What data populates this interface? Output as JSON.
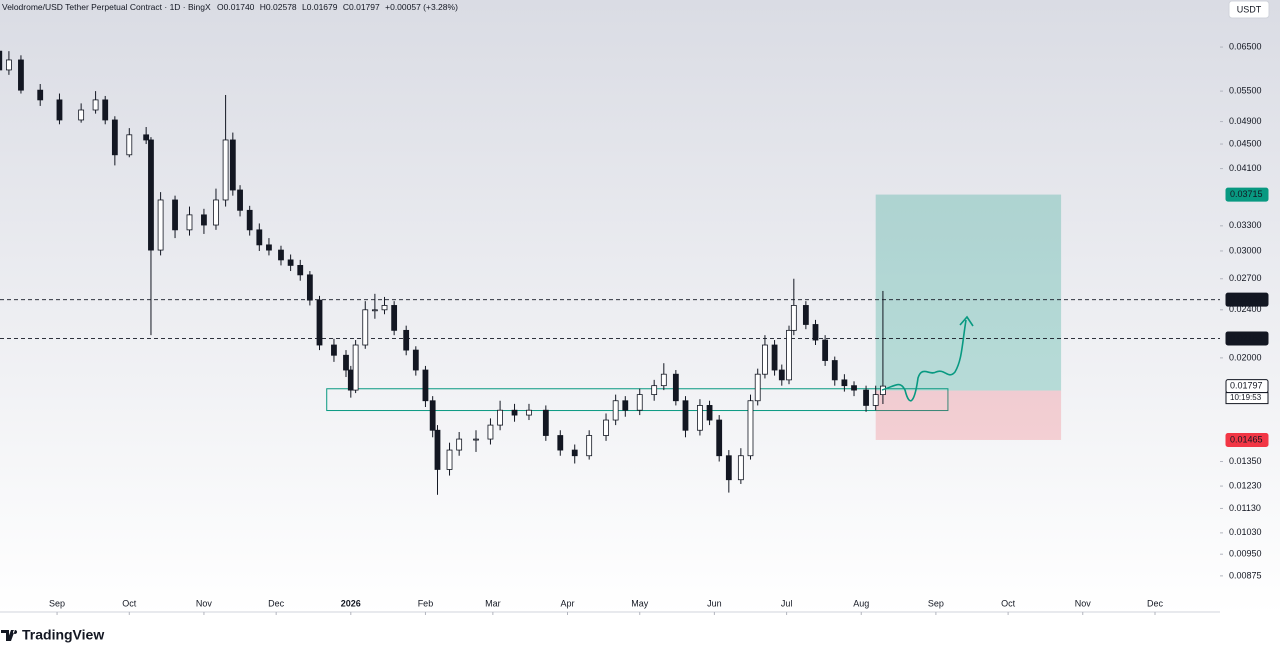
{
  "header": {
    "symbol": "Velodrome/USD Tether Perpetual Contract · 1D · BingX",
    "ohlc": [
      {
        "label": "O",
        "value": "0.01740"
      },
      {
        "label": "H",
        "value": "0.02578"
      },
      {
        "label": "L",
        "value": "0.01679"
      },
      {
        "label": "C",
        "value": "0.01797"
      }
    ],
    "change": "+0.00057 (+3.28%)"
  },
  "toolbar": {
    "currency": "USDT"
  },
  "footer": {
    "brand": "TradingView"
  },
  "chart_data": {
    "type": "candlestick",
    "log_scale": true,
    "ylim": [
      0.00763,
      0.0777
    ],
    "yticks": [
      {
        "value": 0.065,
        "label": "0.06500"
      },
      {
        "value": 0.055,
        "label": "0.05500"
      },
      {
        "value": 0.049,
        "label": "0.04900"
      },
      {
        "value": 0.045,
        "label": "0.04500"
      },
      {
        "value": 0.041,
        "label": "0.04100"
      },
      {
        "value": 0.033,
        "label": "0.03300"
      },
      {
        "value": 0.03,
        "label": "0.03000"
      },
      {
        "value": 0.027,
        "label": "0.02700"
      },
      {
        "value": 0.024,
        "label": "0.02400"
      },
      {
        "value": 0.02,
        "label": "0.02000"
      },
      {
        "value": 0.0135,
        "label": "0.01350"
      },
      {
        "value": 0.0123,
        "label": "0.01230"
      },
      {
        "value": 0.0113,
        "label": "0.01130"
      },
      {
        "value": 0.0103,
        "label": "0.01030"
      },
      {
        "value": 0.0095,
        "label": "0.00950"
      },
      {
        "value": 0.00875,
        "label": "0.00875"
      }
    ],
    "xlim": [
      -23.7,
      483
    ],
    "xticks": [
      {
        "value": 0,
        "label": "Sep"
      },
      {
        "value": 30,
        "label": "Oct"
      },
      {
        "value": 61,
        "label": "Nov"
      },
      {
        "value": 91,
        "label": "Dec"
      },
      {
        "value": 122,
        "label": "2026"
      },
      {
        "value": 153,
        "label": "Feb"
      },
      {
        "value": 181,
        "label": "Mar"
      },
      {
        "value": 212,
        "label": "Apr"
      },
      {
        "value": 242,
        "label": "May"
      },
      {
        "value": 273,
        "label": "Jun"
      },
      {
        "value": 303,
        "label": "Jul"
      },
      {
        "value": 334,
        "label": "Aug"
      },
      {
        "value": 365,
        "label": "Sep"
      },
      {
        "value": 395,
        "label": "Oct"
      },
      {
        "value": 426,
        "label": "Nov"
      },
      {
        "value": 456,
        "label": "Dec"
      }
    ],
    "x": [
      -24,
      -20,
      -15,
      -7,
      1,
      10,
      16,
      20,
      24,
      30,
      37,
      39,
      43,
      49,
      55,
      61,
      66,
      70,
      73,
      76,
      80,
      84,
      88,
      93,
      97,
      101,
      105,
      109,
      115,
      120,
      122,
      124,
      128,
      132,
      136,
      140,
      145,
      149,
      153,
      156,
      158,
      163,
      167,
      174,
      180,
      184,
      190,
      196,
      203,
      209,
      215,
      221,
      228,
      232,
      236,
      242,
      248,
      252,
      257,
      261,
      267,
      271,
      275,
      279,
      284,
      288,
      291,
      294,
      298,
      301,
      304,
      306,
      311,
      315,
      319,
      323,
      327,
      331,
      336,
      340,
      343
    ],
    "open": [
      0.064,
      0.0596,
      0.0619,
      0.0552,
      0.0532,
      0.0493,
      0.0512,
      0.0532,
      0.0493,
      0.0432,
      0.0466,
      0.0457,
      0.0301,
      0.0364,
      0.0325,
      0.0344,
      0.0331,
      0.0364,
      0.0457,
      0.0378,
      0.035,
      0.0325,
      0.0307,
      0.0301,
      0.029,
      0.0284,
      0.0274,
      0.0249,
      0.021,
      0.0202,
      0.0191,
      0.0177,
      0.021,
      0.024,
      0.024,
      0.0244,
      0.0222,
      0.0206,
      0.0191,
      0.017,
      0.0152,
      0.0131,
      0.0141,
      0.0147,
      0.0147,
      0.0155,
      0.0164,
      0.0161,
      0.0164,
      0.0149,
      0.0141,
      0.0138,
      0.0149,
      0.0158,
      0.017,
      0.0164,
      0.0174,
      0.018,
      0.0188,
      0.017,
      0.0152,
      0.0167,
      0.0158,
      0.0138,
      0.0126,
      0.0138,
      0.017,
      0.0188,
      0.021,
      0.0191,
      0.0184,
      0.0222,
      0.0244,
      0.0227,
      0.0214,
      0.0198,
      0.0184,
      0.018,
      0.0177,
      0.0167,
      0.0174
    ],
    "high": [
      0.068,
      0.064,
      0.063,
      0.0565,
      0.0545,
      0.0525,
      0.055,
      0.054,
      0.05,
      0.0478,
      0.048,
      0.0462,
      0.0375,
      0.037,
      0.0355,
      0.0352,
      0.038,
      0.0542,
      0.047,
      0.0385,
      0.0356,
      0.0333,
      0.0315,
      0.0306,
      0.0296,
      0.029,
      0.0278,
      0.0253,
      0.0215,
      0.0206,
      0.0194,
      0.0214,
      0.0248,
      0.0255,
      0.0252,
      0.0248,
      0.0226,
      0.0209,
      0.0194,
      0.0173,
      0.0155,
      0.0145,
      0.0151,
      0.0152,
      0.0159,
      0.017,
      0.0168,
      0.0168,
      0.0167,
      0.0152,
      0.0144,
      0.0152,
      0.0162,
      0.0174,
      0.0173,
      0.0178,
      0.0184,
      0.0196,
      0.0191,
      0.0173,
      0.0171,
      0.017,
      0.0161,
      0.0141,
      0.0142,
      0.0174,
      0.0192,
      0.0218,
      0.0214,
      0.0195,
      0.0226,
      0.027,
      0.0248,
      0.0231,
      0.0218,
      0.0201,
      0.0188,
      0.0183,
      0.018,
      0.018,
      0.02578
    ],
    "low": [
      0.059,
      0.0585,
      0.0545,
      0.052,
      0.0485,
      0.0488,
      0.0505,
      0.0485,
      0.0415,
      0.0428,
      0.045,
      0.0218,
      0.0295,
      0.0315,
      0.0318,
      0.032,
      0.0325,
      0.0355,
      0.037,
      0.0342,
      0.0318,
      0.03,
      0.0295,
      0.0284,
      0.0278,
      0.0268,
      0.0244,
      0.0206,
      0.0197,
      0.0186,
      0.0172,
      0.0175,
      0.0207,
      0.0232,
      0.0236,
      0.0218,
      0.0202,
      0.0187,
      0.0166,
      0.0148,
      0.0119,
      0.0128,
      0.0138,
      0.014,
      0.0144,
      0.0152,
      0.0157,
      0.0158,
      0.0146,
      0.0138,
      0.0134,
      0.0136,
      0.0146,
      0.0155,
      0.016,
      0.0161,
      0.017,
      0.0177,
      0.0167,
      0.0148,
      0.0149,
      0.0155,
      0.0135,
      0.012,
      0.0124,
      0.0136,
      0.0167,
      0.0185,
      0.0187,
      0.018,
      0.0181,
      0.0218,
      0.0223,
      0.021,
      0.0194,
      0.018,
      0.0176,
      0.0173,
      0.0163,
      0.0164,
      0.01679
    ],
    "close": [
      0.0596,
      0.0619,
      0.0552,
      0.0532,
      0.0493,
      0.0512,
      0.0532,
      0.0493,
      0.0432,
      0.0466,
      0.0457,
      0.0301,
      0.0364,
      0.0325,
      0.0344,
      0.0331,
      0.0364,
      0.0457,
      0.0378,
      0.035,
      0.0325,
      0.0307,
      0.0301,
      0.029,
      0.0284,
      0.0274,
      0.0249,
      0.021,
      0.0202,
      0.0191,
      0.0177,
      0.021,
      0.024,
      0.024,
      0.0244,
      0.0222,
      0.0206,
      0.0191,
      0.017,
      0.0152,
      0.0131,
      0.0141,
      0.0147,
      0.0147,
      0.0155,
      0.0164,
      0.0161,
      0.0164,
      0.0149,
      0.0141,
      0.0138,
      0.0149,
      0.0158,
      0.017,
      0.0164,
      0.0174,
      0.018,
      0.0188,
      0.017,
      0.0152,
      0.0167,
      0.0158,
      0.0138,
      0.0126,
      0.0138,
      0.017,
      0.0188,
      0.021,
      0.0191,
      0.0184,
      0.0222,
      0.0244,
      0.0227,
      0.0214,
      0.0198,
      0.0184,
      0.018,
      0.0177,
      0.0167,
      0.0174,
      0.01797
    ],
    "up_color": "#ffffff",
    "down_color": "#131722",
    "zone": {
      "top": 0.01779,
      "bottom": 0.01638,
      "start": 112,
      "end": 370,
      "color": "#089981"
    },
    "position": {
      "entry": 0.01767,
      "target": 0.03715,
      "stop": 0.01465,
      "start": 340,
      "end": 417,
      "colors": {
        "target": "#089981",
        "entry": "#787b86",
        "stop": "#f23645"
      }
    },
    "price_labels": [
      {
        "value": 0.02494,
        "color": "#131722",
        "dashed": true
      },
      {
        "value": 0.02153,
        "color": "#131722",
        "dashed": true
      },
      {
        "value": 0.01797,
        "color": "#ffffff",
        "dashed": false
      }
    ],
    "countdown": "10:19:53"
  }
}
